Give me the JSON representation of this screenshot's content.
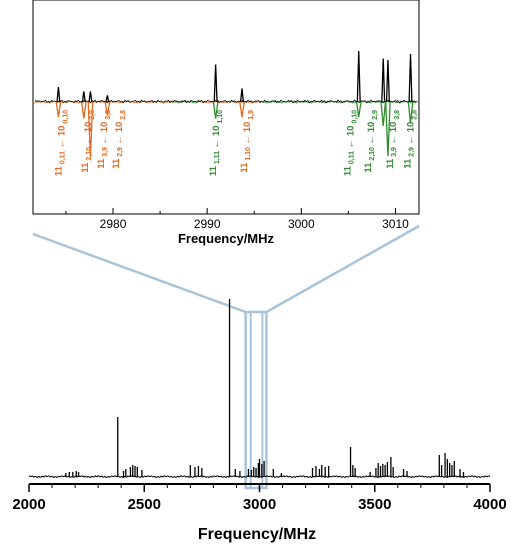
{
  "colors": {
    "experimental": "#000000",
    "simulated_orange": "#e06a1e",
    "simulated_green": "#2e8b2e",
    "zoom_box": "#a9c4da"
  },
  "chart_data": [
    {
      "type": "line",
      "panel": "inset",
      "xlabel": "Frequency/MHz",
      "xlim": [
        2971.5,
        3012.5
      ],
      "xticks": [
        2980,
        2990,
        3000,
        3010
      ],
      "series": [
        {
          "color": "#000000",
          "direction": "up",
          "peaks": [
            [
              2974.2,
              0.5
            ],
            [
              2976.9,
              0.35
            ],
            [
              2977.6,
              0.35
            ],
            [
              2979.4,
              0.22
            ],
            [
              2990.9,
              1.25
            ],
            [
              2993.7,
              0.45
            ],
            [
              3006.1,
              1.7
            ],
            [
              3008.7,
              1.45
            ],
            [
              3009.2,
              1.4
            ],
            [
              3011.6,
              1.6
            ]
          ]
        },
        {
          "color": "#e06a1e",
          "direction": "down",
          "peaks": [
            [
              2974.2,
              0.5
            ],
            [
              2976.9,
              0.55
            ],
            [
              2977.6,
              1.85
            ],
            [
              2979.4,
              0.45
            ],
            [
              2993.7,
              0.5
            ]
          ]
        },
        {
          "color": "#2e8b2e",
          "direction": "down",
          "peaks": [
            [
              2990.9,
              0.55
            ],
            [
              3006.1,
              0.5
            ],
            [
              3008.7,
              0.8
            ],
            [
              3009.2,
              1.8
            ],
            [
              3011.6,
              0.7
            ]
          ]
        }
      ],
      "annotations": [
        {
          "freq": 2974.2,
          "color": "#e06a1e",
          "parts": [
            [
              "11",
              "n"
            ],
            [
              "0,11",
              "s"
            ],
            [
              " ← 10",
              "n"
            ],
            [
              "0,10",
              "s"
            ]
          ]
        },
        {
          "freq": 2977.0,
          "color": "#e06a1e",
          "parts": [
            [
              "11",
              "n"
            ],
            [
              "2,10",
              "s"
            ],
            [
              " ← 10",
              "n"
            ],
            [
              "2,9",
              "s"
            ]
          ]
        },
        {
          "freq": 2978.7,
          "color": "#e06a1e",
          "parts": [
            [
              "11",
              "n"
            ],
            [
              "3,9",
              "s"
            ],
            [
              " ← 10",
              "n"
            ],
            [
              "3,8",
              "s"
            ]
          ]
        },
        {
          "freq": 2980.3,
          "color": "#e06a1e",
          "parts": [
            [
              "11",
              "n"
            ],
            [
              "2,9",
              "s"
            ],
            [
              " ← 10",
              "n"
            ],
            [
              "2,8",
              "s"
            ]
          ]
        },
        {
          "freq": 2990.6,
          "color": "#2e8b2e",
          "parts": [
            [
              "11",
              "n"
            ],
            [
              "1,11",
              "s"
            ],
            [
              " ← 10",
              "n"
            ],
            [
              "1,10",
              "s"
            ]
          ]
        },
        {
          "freq": 2993.9,
          "color": "#e06a1e",
          "parts": [
            [
              "11",
              "n"
            ],
            [
              "1,10",
              "s"
            ],
            [
              " ← 10",
              "n"
            ],
            [
              "1,9",
              "s"
            ]
          ]
        },
        {
          "freq": 3004.9,
          "color": "#2e8b2e",
          "parts": [
            [
              "11",
              "n"
            ],
            [
              "0,11",
              "s"
            ],
            [
              " ← 10",
              "n"
            ],
            [
              "0,10",
              "s"
            ]
          ]
        },
        {
          "freq": 3007.1,
          "color": "#2e8b2e",
          "parts": [
            [
              "11",
              "n"
            ],
            [
              "2,10",
              "s"
            ],
            [
              " ← 10",
              "n"
            ],
            [
              "2,9",
              "s"
            ]
          ]
        },
        {
          "freq": 3009.4,
          "color": "#2e8b2e",
          "parts": [
            [
              "11",
              "n"
            ],
            [
              "3,9",
              "s"
            ],
            [
              " ← 10",
              "n"
            ],
            [
              "3,8",
              "s"
            ]
          ]
        },
        {
          "freq": 3011.3,
          "color": "#2e8b2e",
          "parts": [
            [
              "11",
              "n"
            ],
            [
              "2,9",
              "s"
            ],
            [
              " ← 10",
              "n"
            ],
            [
              "2,8",
              "s"
            ]
          ]
        }
      ]
    },
    {
      "type": "line",
      "panel": "main",
      "xlabel": "Frequency/MHz",
      "xlim": [
        2000,
        4000
      ],
      "xticks": [
        2000,
        2500,
        3000,
        3500,
        4000
      ],
      "zoom_region": [
        2940,
        3030
      ],
      "series": [
        {
          "color": "#000000",
          "peaks": [
            [
              2160,
              4
            ],
            [
              2175,
              5
            ],
            [
              2190,
              5
            ],
            [
              2205,
              6
            ],
            [
              2215,
              5
            ],
            [
              2385,
              60
            ],
            [
              2410,
              6
            ],
            [
              2420,
              8
            ],
            [
              2440,
              10
            ],
            [
              2450,
              12
            ],
            [
              2460,
              11
            ],
            [
              2470,
              10
            ],
            [
              2490,
              7
            ],
            [
              2700,
              12
            ],
            [
              2720,
              10
            ],
            [
              2735,
              11
            ],
            [
              2750,
              9
            ],
            [
              2870,
              178
            ],
            [
              2895,
              8
            ],
            [
              2915,
              6
            ],
            [
              2952,
              8
            ],
            [
              2965,
              7
            ],
            [
              2975,
              10
            ],
            [
              2985,
              9
            ],
            [
              2995,
              14
            ],
            [
              3000,
              18
            ],
            [
              3010,
              13
            ],
            [
              3020,
              16
            ],
            [
              3060,
              8
            ],
            [
              3095,
              4
            ],
            [
              3230,
              9
            ],
            [
              3245,
              11
            ],
            [
              3260,
              8
            ],
            [
              3270,
              12
            ],
            [
              3285,
              10
            ],
            [
              3300,
              11
            ],
            [
              3395,
              30
            ],
            [
              3405,
              12
            ],
            [
              3415,
              9
            ],
            [
              3480,
              5
            ],
            [
              3505,
              9
            ],
            [
              3515,
              14
            ],
            [
              3525,
              11
            ],
            [
              3535,
              13
            ],
            [
              3545,
              12
            ],
            [
              3555,
              15
            ],
            [
              3570,
              20
            ],
            [
              3580,
              10
            ],
            [
              3625,
              8
            ],
            [
              3640,
              6
            ],
            [
              3780,
              22
            ],
            [
              3790,
              12
            ],
            [
              3805,
              24
            ],
            [
              3815,
              18
            ],
            [
              3825,
              14
            ],
            [
              3835,
              12
            ],
            [
              3845,
              16
            ],
            [
              3870,
              8
            ],
            [
              3885,
              5
            ]
          ]
        }
      ]
    }
  ]
}
